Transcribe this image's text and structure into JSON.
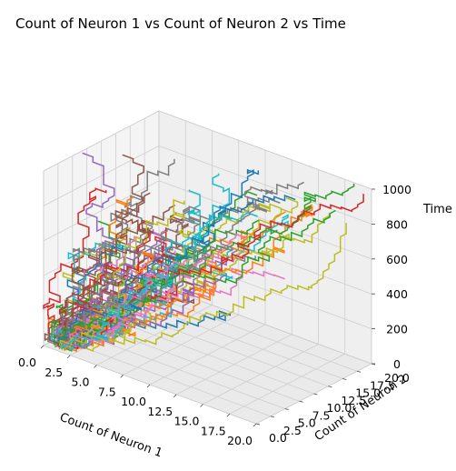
{
  "chart_data": {
    "type": "line3d",
    "title": "Count of Neuron 1 vs Count of Neuron 2 vs Time",
    "xlabel": "Count of Neuron 1",
    "ylabel": "Count of Neuron 2",
    "zlabel": "Time",
    "xlim": [
      0,
      20
    ],
    "ylim": [
      0,
      20
    ],
    "zlim": [
      0,
      1000
    ],
    "x_ticks": [
      "0.0",
      "2.5",
      "5.0",
      "7.5",
      "10.0",
      "12.5",
      "15.0",
      "17.5",
      "20.0"
    ],
    "y_ticks": [
      "0.0",
      "2.5",
      "5.0",
      "7.5",
      "10.0",
      "12.5",
      "15.0",
      "17.5",
      "20.0"
    ],
    "z_ticks": [
      "0",
      "200",
      "400",
      "600",
      "800",
      "1000"
    ],
    "grid": true,
    "series_count": 60,
    "series_description": "many stochastic step trajectories starting near (1,1,0) and drifting to higher counts of both neurons as time increases",
    "colors": [
      "#1f77b4",
      "#ff7f0e",
      "#2ca02c",
      "#d62728",
      "#9467bd",
      "#8c564b",
      "#e377c2",
      "#7f7f7f",
      "#bcbd22",
      "#17becf"
    ]
  }
}
